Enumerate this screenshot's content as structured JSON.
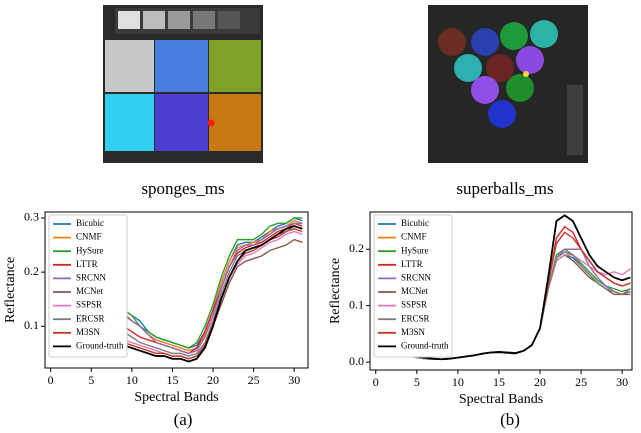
{
  "chart_data": [
    {
      "type": "line",
      "image_caption": "sponges_ms",
      "caption": "(a)",
      "xlabel": "Spectral Bands",
      "ylabel": "Reflectance",
      "x": [
        1,
        2,
        3,
        4,
        5,
        6,
        7,
        8,
        9,
        10,
        11,
        12,
        13,
        14,
        15,
        16,
        17,
        18,
        19,
        20,
        21,
        22,
        23,
        24,
        25,
        26,
        27,
        28,
        29,
        30,
        31
      ],
      "xlim": [
        -0.7,
        31.7
      ],
      "xticks": [
        0,
        5,
        10,
        15,
        20,
        25,
        30
      ],
      "ylim": [
        0.023,
        0.311
      ],
      "yticks": [
        0.1,
        0.2,
        0.3
      ],
      "legend": "upper left",
      "series": [
        {
          "name": "Bicubic",
          "color": "#1f77b4",
          "values": [
            0.13,
            0.12,
            0.12,
            0.13,
            0.14,
            0.14,
            0.14,
            0.14,
            0.13,
            0.12,
            0.11,
            0.09,
            0.08,
            0.075,
            0.07,
            0.065,
            0.06,
            0.065,
            0.09,
            0.13,
            0.18,
            0.22,
            0.25,
            0.255,
            0.255,
            0.265,
            0.275,
            0.285,
            0.29,
            0.3,
            0.295
          ]
        },
        {
          "name": "CNMF",
          "color": "#ff7f0e",
          "values": [
            0.12,
            0.11,
            0.11,
            0.12,
            0.13,
            0.13,
            0.13,
            0.13,
            0.125,
            0.11,
            0.1,
            0.085,
            0.075,
            0.07,
            0.065,
            0.06,
            0.055,
            0.06,
            0.085,
            0.13,
            0.18,
            0.22,
            0.245,
            0.25,
            0.255,
            0.26,
            0.275,
            0.28,
            0.285,
            0.295,
            0.29
          ]
        },
        {
          "name": "HySure",
          "color": "#2ca02c",
          "values": [
            0.13,
            0.12,
            0.12,
            0.13,
            0.14,
            0.145,
            0.145,
            0.14,
            0.13,
            0.12,
            0.1,
            0.09,
            0.08,
            0.075,
            0.07,
            0.065,
            0.06,
            0.07,
            0.1,
            0.14,
            0.19,
            0.23,
            0.26,
            0.26,
            0.26,
            0.27,
            0.285,
            0.29,
            0.29,
            0.3,
            0.3
          ]
        },
        {
          "name": "LTTR",
          "color": "#d62728",
          "values": [
            0.13,
            0.11,
            0.1,
            0.1,
            0.11,
            0.11,
            0.11,
            0.105,
            0.1,
            0.09,
            0.08,
            0.075,
            0.07,
            0.065,
            0.06,
            0.055,
            0.05,
            0.06,
            0.09,
            0.13,
            0.17,
            0.21,
            0.235,
            0.245,
            0.25,
            0.255,
            0.265,
            0.275,
            0.28,
            0.29,
            0.285
          ]
        },
        {
          "name": "SRCNN",
          "color": "#9467bd",
          "values": [
            0.12,
            0.11,
            0.11,
            0.12,
            0.13,
            0.13,
            0.13,
            0.125,
            0.12,
            0.11,
            0.1,
            0.085,
            0.07,
            0.065,
            0.06,
            0.055,
            0.05,
            0.055,
            0.08,
            0.12,
            0.17,
            0.21,
            0.24,
            0.25,
            0.25,
            0.26,
            0.27,
            0.28,
            0.285,
            0.29,
            0.29
          ]
        },
        {
          "name": "MCNet",
          "color": "#8c564b",
          "values": [
            0.11,
            0.095,
            0.09,
            0.085,
            0.085,
            0.08,
            0.075,
            0.07,
            0.065,
            0.06,
            0.055,
            0.05,
            0.045,
            0.045,
            0.04,
            0.04,
            0.035,
            0.04,
            0.06,
            0.1,
            0.14,
            0.18,
            0.21,
            0.22,
            0.225,
            0.23,
            0.24,
            0.245,
            0.25,
            0.26,
            0.255
          ]
        },
        {
          "name": "SSPSR",
          "color": "#e377c2",
          "values": [
            0.11,
            0.09,
            0.085,
            0.085,
            0.09,
            0.09,
            0.085,
            0.08,
            0.075,
            0.07,
            0.065,
            0.06,
            0.055,
            0.05,
            0.045,
            0.045,
            0.04,
            0.045,
            0.065,
            0.1,
            0.15,
            0.19,
            0.215,
            0.23,
            0.235,
            0.245,
            0.255,
            0.26,
            0.27,
            0.275,
            0.27
          ]
        },
        {
          "name": "ERCSR",
          "color": "#7f7f7f",
          "values": [
            0.12,
            0.1,
            0.095,
            0.095,
            0.1,
            0.1,
            0.1,
            0.095,
            0.09,
            0.08,
            0.07,
            0.065,
            0.06,
            0.055,
            0.05,
            0.05,
            0.045,
            0.05,
            0.07,
            0.11,
            0.16,
            0.2,
            0.23,
            0.24,
            0.245,
            0.25,
            0.26,
            0.27,
            0.275,
            0.285,
            0.28
          ]
        },
        {
          "name": "M3SN",
          "color": "#c0392b",
          "values": [
            0.115,
            0.095,
            0.09,
            0.09,
            0.085,
            0.085,
            0.08,
            0.075,
            0.07,
            0.065,
            0.06,
            0.055,
            0.05,
            0.05,
            0.045,
            0.045,
            0.04,
            0.045,
            0.065,
            0.105,
            0.15,
            0.19,
            0.22,
            0.235,
            0.24,
            0.25,
            0.26,
            0.265,
            0.275,
            0.28,
            0.275
          ]
        },
        {
          "name": "Ground-truth",
          "color": "#000000",
          "values": [
            0.12,
            0.1,
            0.09,
            0.085,
            0.08,
            0.08,
            0.075,
            0.07,
            0.065,
            0.06,
            0.055,
            0.05,
            0.045,
            0.045,
            0.04,
            0.04,
            0.035,
            0.04,
            0.06,
            0.1,
            0.15,
            0.19,
            0.22,
            0.24,
            0.245,
            0.25,
            0.26,
            0.27,
            0.28,
            0.285,
            0.28
          ]
        }
      ]
    },
    {
      "type": "line",
      "image_caption": "superballs_ms",
      "caption": "(b)",
      "xlabel": "Spectral Bands",
      "ylabel": "Reflectance",
      "x": [
        1,
        2,
        3,
        4,
        5,
        6,
        7,
        8,
        9,
        10,
        11,
        12,
        13,
        14,
        15,
        16,
        17,
        18,
        19,
        20,
        21,
        22,
        23,
        24,
        25,
        26,
        27,
        28,
        29,
        30,
        31
      ],
      "xlim": [
        -0.7,
        31.2
      ],
      "xticks": [
        0,
        5,
        10,
        15,
        20,
        25,
        30
      ],
      "ylim": [
        -0.014,
        0.266
      ],
      "yticks": [
        {
          "value": 0,
          "label": "0.0"
        },
        0.1,
        0.2
      ],
      "legend": "upper left",
      "series": [
        {
          "name": "Bicubic",
          "color": "#1f77b4",
          "values": [
            0.06,
            0.035,
            0.02,
            0.012,
            0.008,
            0.006,
            0.005,
            0.005,
            0.006,
            0.008,
            0.01,
            0.012,
            0.015,
            0.017,
            0.017,
            0.016,
            0.015,
            0.02,
            0.03,
            0.06,
            0.13,
            0.18,
            0.19,
            0.185,
            0.17,
            0.155,
            0.14,
            0.13,
            0.125,
            0.12,
            0.125
          ]
        },
        {
          "name": "CNMF",
          "color": "#ff7f0e",
          "values": [
            0.06,
            0.035,
            0.02,
            0.012,
            0.008,
            0.006,
            0.005,
            0.005,
            0.006,
            0.008,
            0.01,
            0.012,
            0.015,
            0.017,
            0.017,
            0.016,
            0.015,
            0.02,
            0.03,
            0.06,
            0.13,
            0.185,
            0.195,
            0.19,
            0.175,
            0.16,
            0.145,
            0.135,
            0.125,
            0.12,
            0.125
          ]
        },
        {
          "name": "HySure",
          "color": "#2ca02c",
          "values": [
            0.055,
            0.035,
            0.02,
            0.012,
            0.008,
            0.006,
            0.005,
            0.005,
            0.006,
            0.008,
            0.01,
            0.012,
            0.015,
            0.017,
            0.018,
            0.017,
            0.016,
            0.02,
            0.03,
            0.06,
            0.13,
            0.19,
            0.2,
            0.19,
            0.175,
            0.16,
            0.145,
            0.135,
            0.13,
            0.125,
            0.13
          ]
        },
        {
          "name": "LTTR",
          "color": "#d62728",
          "values": [
            0.06,
            0.04,
            0.025,
            0.015,
            0.01,
            0.008,
            0.006,
            0.005,
            0.006,
            0.008,
            0.01,
            0.012,
            0.015,
            0.017,
            0.018,
            0.017,
            0.016,
            0.02,
            0.03,
            0.06,
            0.14,
            0.22,
            0.24,
            0.23,
            0.2,
            0.18,
            0.16,
            0.15,
            0.14,
            0.135,
            0.14
          ]
        },
        {
          "name": "SRCNN",
          "color": "#9467bd",
          "values": [
            0.06,
            0.035,
            0.02,
            0.012,
            0.008,
            0.006,
            0.005,
            0.005,
            0.006,
            0.008,
            0.01,
            0.012,
            0.015,
            0.017,
            0.017,
            0.016,
            0.015,
            0.02,
            0.03,
            0.06,
            0.13,
            0.185,
            0.2,
            0.2,
            0.2,
            0.17,
            0.15,
            0.135,
            0.125,
            0.12,
            0.125
          ]
        },
        {
          "name": "MCNet",
          "color": "#8c564b",
          "values": [
            0.06,
            0.035,
            0.02,
            0.012,
            0.008,
            0.006,
            0.005,
            0.005,
            0.006,
            0.008,
            0.01,
            0.012,
            0.015,
            0.017,
            0.017,
            0.016,
            0.015,
            0.02,
            0.03,
            0.06,
            0.13,
            0.18,
            0.19,
            0.18,
            0.165,
            0.15,
            0.14,
            0.13,
            0.12,
            0.12,
            0.12
          ]
        },
        {
          "name": "SSPSR",
          "color": "#e377c2",
          "values": [
            0.065,
            0.04,
            0.025,
            0.015,
            0.01,
            0.008,
            0.006,
            0.005,
            0.006,
            0.008,
            0.01,
            0.012,
            0.015,
            0.017,
            0.017,
            0.016,
            0.015,
            0.02,
            0.03,
            0.06,
            0.13,
            0.18,
            0.19,
            0.19,
            0.18,
            0.17,
            0.16,
            0.155,
            0.16,
            0.155,
            0.165
          ]
        },
        {
          "name": "ERCSR",
          "color": "#7f7f7f",
          "values": [
            0.06,
            0.035,
            0.02,
            0.012,
            0.008,
            0.006,
            0.005,
            0.005,
            0.006,
            0.008,
            0.01,
            0.012,
            0.015,
            0.017,
            0.017,
            0.016,
            0.015,
            0.02,
            0.03,
            0.06,
            0.13,
            0.185,
            0.195,
            0.19,
            0.17,
            0.155,
            0.14,
            0.13,
            0.125,
            0.12,
            0.13
          ]
        },
        {
          "name": "M3SN",
          "color": "#c0392b",
          "values": [
            0.06,
            0.04,
            0.025,
            0.015,
            0.01,
            0.008,
            0.006,
            0.005,
            0.006,
            0.008,
            0.01,
            0.012,
            0.015,
            0.017,
            0.018,
            0.017,
            0.016,
            0.02,
            0.03,
            0.06,
            0.14,
            0.21,
            0.23,
            0.22,
            0.2,
            0.18,
            0.16,
            0.15,
            0.14,
            0.135,
            0.14
          ]
        },
        {
          "name": "Ground-truth",
          "color": "#000000",
          "values": [
            0.06,
            0.04,
            0.025,
            0.015,
            0.01,
            0.008,
            0.006,
            0.005,
            0.006,
            0.008,
            0.01,
            0.012,
            0.015,
            0.017,
            0.018,
            0.017,
            0.016,
            0.02,
            0.03,
            0.06,
            0.15,
            0.25,
            0.26,
            0.25,
            0.22,
            0.19,
            0.17,
            0.16,
            0.15,
            0.145,
            0.15
          ]
        }
      ]
    }
  ]
}
